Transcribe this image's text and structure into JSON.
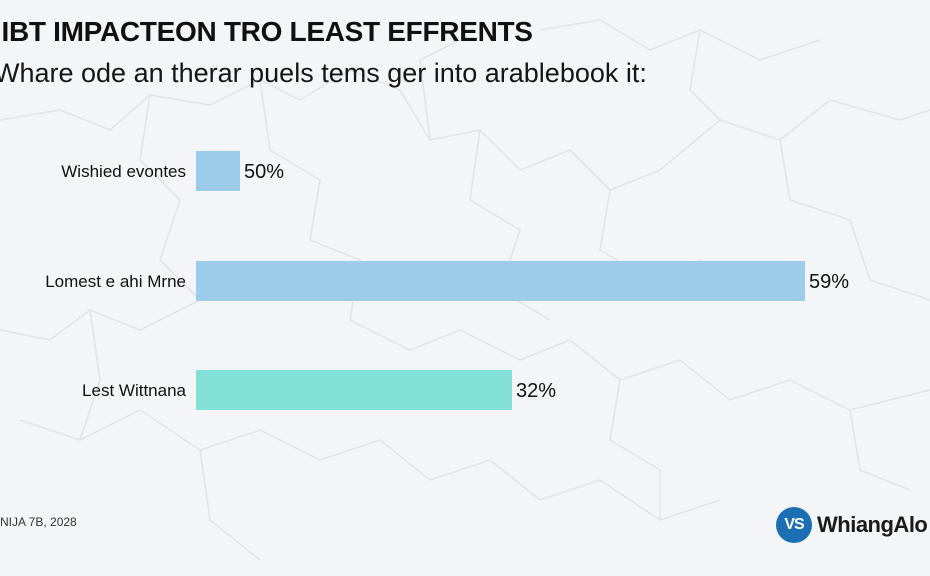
{
  "header": {
    "title": "IIBT IMPACTEON TRO LEAST EFFRENTS",
    "subtitle": "Whare ode an therar puels tems ger into arablebook it:"
  },
  "footer": {
    "date": "NIJA 7B, 2028",
    "brand_logo_text": "VS",
    "brand_name": "WhiangAlo"
  },
  "colors": {
    "background": "#f4f5f6",
    "map_lines": "#e2e4e7",
    "bar_blue": "#9dcbea",
    "bar_teal": "#82e0d6",
    "brand_blue": "#1d6fb3"
  },
  "chart_data": {
    "type": "bar",
    "orientation": "horizontal",
    "categories": [
      "Wishied evontes",
      "Lomest e ahi Mrne",
      "Lest Wittnana"
    ],
    "values": [
      50,
      59,
      32
    ],
    "value_labels": [
      "50%",
      "59%",
      "32%"
    ],
    "bar_colors": [
      "#9dcbea",
      "#9dcbea",
      "#82e0d6"
    ],
    "xlim": [
      0,
      59
    ],
    "grid": false,
    "legend": "none"
  }
}
